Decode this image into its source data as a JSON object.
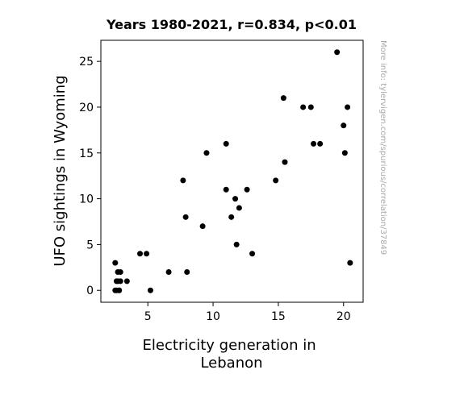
{
  "chart_data": {
    "type": "scatter",
    "title": "Years 1980-2021, r=0.834, p<0.01",
    "xlabel_lines": [
      "Electricity generation in",
      "Lebanon"
    ],
    "ylabel": "UFO sightings in Wyoming",
    "xlim": [
      1.4,
      21.5
    ],
    "ylim": [
      -1.3,
      27.3
    ],
    "xticks": [
      5,
      10,
      15,
      20
    ],
    "yticks": [
      0,
      5,
      10,
      15,
      20,
      25
    ],
    "grid": false,
    "marker_color": "#000000",
    "points": [
      {
        "x": 2.5,
        "y": 3
      },
      {
        "x": 2.5,
        "y": 0
      },
      {
        "x": 2.6,
        "y": 1
      },
      {
        "x": 2.6,
        "y": 0
      },
      {
        "x": 2.7,
        "y": 2
      },
      {
        "x": 2.7,
        "y": 1
      },
      {
        "x": 2.8,
        "y": 0
      },
      {
        "x": 2.9,
        "y": 2
      },
      {
        "x": 2.9,
        "y": 1
      },
      {
        "x": 2.8,
        "y": 0
      },
      {
        "x": 3.4,
        "y": 1
      },
      {
        "x": 4.4,
        "y": 4
      },
      {
        "x": 4.9,
        "y": 4
      },
      {
        "x": 5.2,
        "y": 0
      },
      {
        "x": 6.6,
        "y": 2
      },
      {
        "x": 7.7,
        "y": 12
      },
      {
        "x": 7.9,
        "y": 8
      },
      {
        "x": 8.0,
        "y": 2
      },
      {
        "x": 9.2,
        "y": 7
      },
      {
        "x": 9.5,
        "y": 15
      },
      {
        "x": 11.0,
        "y": 16
      },
      {
        "x": 11.0,
        "y": 11
      },
      {
        "x": 11.4,
        "y": 8
      },
      {
        "x": 11.7,
        "y": 10
      },
      {
        "x": 11.8,
        "y": 5
      },
      {
        "x": 12.0,
        "y": 9
      },
      {
        "x": 12.6,
        "y": 11
      },
      {
        "x": 13.0,
        "y": 4
      },
      {
        "x": 14.8,
        "y": 12
      },
      {
        "x": 15.4,
        "y": 21
      },
      {
        "x": 15.5,
        "y": 14
      },
      {
        "x": 16.9,
        "y": 20
      },
      {
        "x": 17.5,
        "y": 20
      },
      {
        "x": 17.7,
        "y": 16
      },
      {
        "x": 18.2,
        "y": 16
      },
      {
        "x": 19.5,
        "y": 26
      },
      {
        "x": 20.0,
        "y": 18
      },
      {
        "x": 20.1,
        "y": 15
      },
      {
        "x": 20.3,
        "y": 20
      },
      {
        "x": 20.5,
        "y": 3
      }
    ]
  },
  "watermark": "More info: tylervigen.com/spurious/correlation/37849"
}
